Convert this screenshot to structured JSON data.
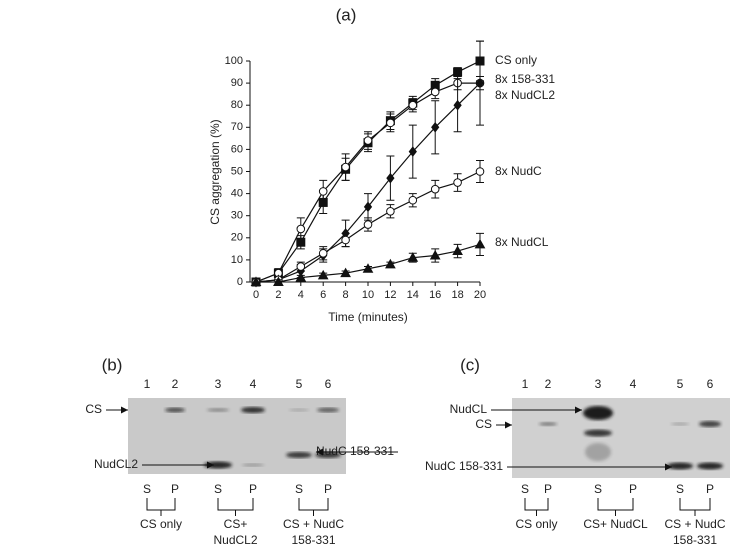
{
  "chart_data": {
    "type": "line",
    "title": "(a)",
    "x_label": "Time (minutes)",
    "y_label": "CS aggregation (%)",
    "x": [
      0,
      2,
      4,
      6,
      8,
      10,
      12,
      14,
      16,
      18,
      20
    ],
    "xlim": [
      0,
      20
    ],
    "xticks": [
      0,
      2,
      4,
      6,
      8,
      10,
      12,
      14,
      16,
      18,
      20
    ],
    "ylim": [
      0,
      100
    ],
    "yticks": [
      0,
      10,
      20,
      30,
      40,
      50,
      60,
      70,
      80,
      90,
      100
    ],
    "series": [
      {
        "name": "CS only",
        "color": "#111111",
        "marker": "square-filled",
        "values": [
          0,
          4,
          18,
          36,
          51,
          63,
          73,
          81,
          89,
          95,
          100
        ],
        "errors": [
          0,
          2,
          3,
          5,
          5,
          4,
          4,
          3,
          3,
          2,
          9
        ]
      },
      {
        "name": "8x 158-331",
        "color": "#111111",
        "marker": "circle-open",
        "values": [
          0,
          4,
          24,
          41,
          52,
          64,
          72,
          80,
          86,
          90,
          90
        ],
        "errors": [
          0,
          2,
          5,
          5,
          6,
          4,
          4,
          3,
          3,
          3,
          3
        ]
      },
      {
        "name": "8x NudCL2",
        "color": "#111111",
        "marker": "diamond-filled",
        "values": [
          0,
          1,
          5,
          12,
          22,
          34,
          47,
          59,
          70,
          80,
          90
        ],
        "errors": [
          0,
          1,
          3,
          3,
          6,
          6,
          10,
          12,
          12,
          12,
          19
        ]
      },
      {
        "name": "8x NudC",
        "color": "#111111",
        "marker": "circle-open",
        "values": [
          0,
          1,
          7,
          13,
          19,
          26,
          32,
          37,
          42,
          45,
          50
        ],
        "errors": [
          0,
          1,
          2,
          3,
          3,
          3,
          3,
          3,
          4,
          4,
          5
        ]
      },
      {
        "name": "8x NudCL",
        "color": "#111111",
        "marker": "triangle-filled",
        "values": [
          0,
          0,
          2,
          3,
          4,
          6,
          8,
          11,
          12,
          14,
          17
        ],
        "errors": [
          0,
          1,
          1,
          1,
          1,
          1,
          1,
          2,
          3,
          3,
          5
        ]
      }
    ]
  },
  "panel_b": {
    "label": "(b)",
    "lanes": [
      "1",
      "2",
      "3",
      "4",
      "5",
      "6"
    ],
    "markers": [
      "CS",
      "NudC 158-331",
      "NudCL2"
    ],
    "fractions": [
      "S",
      "P",
      "S",
      "P",
      "S",
      "P"
    ],
    "groups": [
      [
        "CS only"
      ],
      [
        "CS+",
        "NudCL2"
      ],
      [
        "CS + NudC",
        "158-331"
      ]
    ]
  },
  "panel_c": {
    "label": "(c)",
    "lanes": [
      "1",
      "2",
      "3",
      "4",
      "5",
      "6"
    ],
    "markers": [
      "NudCL",
      "CS",
      "NudC 158-331"
    ],
    "fractions": [
      "S",
      "P",
      "S",
      "P",
      "S",
      "P"
    ],
    "groups": [
      [
        "CS only"
      ],
      [
        "CS+ NudCL"
      ],
      [
        "CS + NudC",
        "158-331"
      ]
    ]
  }
}
